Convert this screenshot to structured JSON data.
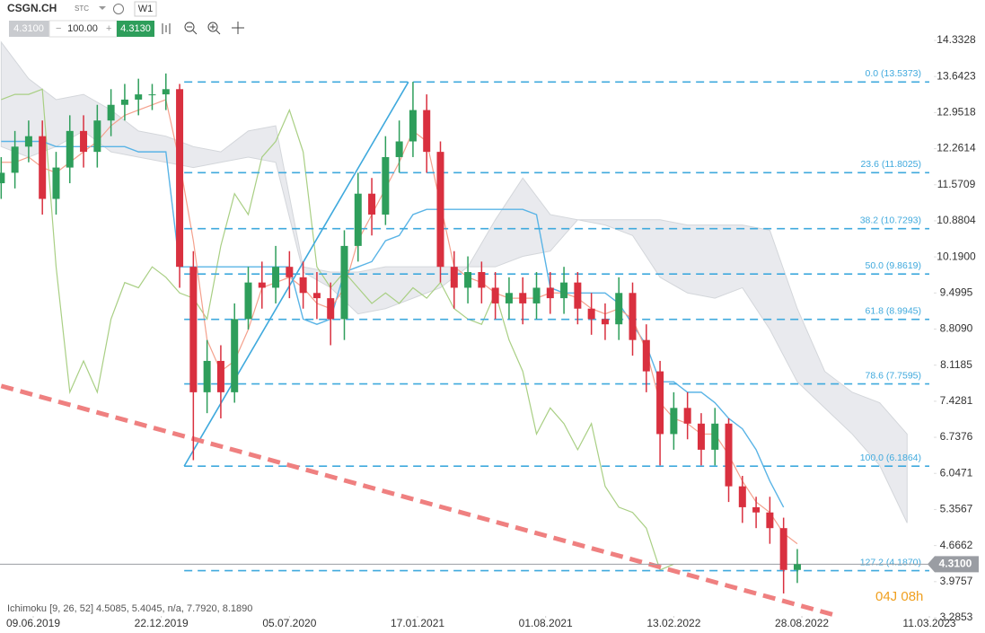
{
  "toolbar": {
    "symbol": "CSGN.CH",
    "exchange": "STC",
    "timeframe": "W1",
    "bid": "4.3100",
    "quantity": "100.00",
    "ask": "4.3130"
  },
  "chart_data": {
    "type": "candlestick",
    "x": [
      "2019-04-21",
      "2019-05-12",
      "2019-06-02",
      "2019-06-23",
      "2019-07-14",
      "2019-08-04",
      "2019-08-25",
      "2019-09-15",
      "2019-10-06",
      "2019-10-27",
      "2019-11-17",
      "2019-12-08",
      "2019-12-29",
      "2020-01-19",
      "2020-02-09",
      "2020-03-01",
      "2020-03-22",
      "2020-04-12",
      "2020-05-03",
      "2020-05-24",
      "2020-06-14",
      "2020-07-05",
      "2020-07-26",
      "2020-08-16",
      "2020-09-06",
      "2020-09-27",
      "2020-10-18",
      "2020-11-08",
      "2020-11-29",
      "2020-12-20",
      "2021-01-10",
      "2021-01-31",
      "2021-02-21",
      "2021-03-14",
      "2021-04-04",
      "2021-04-25",
      "2021-05-16",
      "2021-06-06",
      "2021-06-27",
      "2021-07-18",
      "2021-08-08",
      "2021-08-29",
      "2021-09-19",
      "2021-10-10",
      "2021-10-31",
      "2021-11-21",
      "2021-12-12",
      "2022-01-02",
      "2022-01-23",
      "2022-02-13",
      "2022-03-06",
      "2022-03-27",
      "2022-04-17",
      "2022-05-08",
      "2022-05-29",
      "2022-06-19",
      "2022-07-10",
      "2022-07-31",
      "2022-08-21"
    ],
    "open": [
      11.6,
      11.8,
      12.3,
      12.5,
      11.3,
      11.9,
      12.6,
      12.2,
      12.8,
      13.1,
      13.2,
      13.3,
      13.3,
      13.4,
      10.0,
      7.6,
      8.2,
      7.6,
      9.0,
      9.7,
      9.6,
      10.0,
      9.8,
      9.5,
      9.4,
      9.0,
      10.4,
      11.4,
      11.0,
      12.1,
      12.4,
      13.0,
      12.2,
      10.0,
      9.6,
      9.9,
      9.6,
      9.3,
      9.5,
      9.3,
      9.6,
      9.4,
      9.7,
      9.2,
      9.0,
      8.9,
      9.5,
      8.6,
      8.0,
      6.8,
      7.3,
      7.0,
      6.5,
      7.0,
      5.8,
      5.4,
      5.3,
      5.0,
      4.2
    ],
    "high": [
      12.1,
      12.6,
      12.8,
      12.8,
      12.2,
      12.9,
      12.9,
      13.1,
      13.4,
      13.5,
      13.6,
      13.5,
      13.7,
      13.5,
      10.3,
      8.6,
      8.5,
      9.3,
      10.0,
      10.1,
      10.4,
      10.3,
      10.1,
      9.9,
      9.7,
      10.7,
      11.8,
      11.7,
      12.5,
      12.8,
      13.54,
      13.3,
      12.4,
      10.3,
      10.2,
      10.1,
      9.9,
      9.8,
      9.8,
      9.9,
      9.9,
      10.0,
      9.9,
      9.5,
      9.3,
      9.8,
      9.7,
      8.9,
      8.2,
      7.6,
      7.6,
      7.2,
      7.3,
      7.1,
      6.0,
      5.6,
      5.6,
      5.2,
      4.6
    ],
    "low": [
      11.3,
      11.5,
      12.0,
      11.0,
      11.0,
      11.6,
      11.9,
      11.9,
      12.5,
      12.8,
      12.9,
      13.0,
      13.0,
      9.6,
      6.3,
      7.2,
      7.1,
      7.4,
      8.8,
      9.2,
      9.3,
      9.4,
      9.2,
      9.0,
      8.5,
      8.6,
      10.1,
      10.6,
      10.8,
      11.8,
      12.1,
      11.8,
      9.7,
      9.2,
      9.3,
      9.3,
      9.0,
      9.0,
      8.9,
      9.0,
      9.1,
      9.1,
      8.9,
      8.7,
      8.6,
      8.6,
      8.3,
      7.6,
      6.2,
      6.5,
      6.7,
      6.2,
      6.2,
      5.5,
      5.1,
      5.0,
      4.7,
      3.75,
      3.95
    ],
    "close": [
      11.8,
      12.3,
      12.5,
      11.3,
      11.9,
      12.6,
      12.2,
      12.8,
      13.1,
      13.2,
      13.3,
      13.3,
      13.4,
      10.0,
      7.6,
      8.2,
      7.6,
      9.0,
      9.7,
      9.6,
      10.0,
      9.8,
      9.5,
      9.4,
      9.0,
      10.4,
      11.4,
      11.0,
      12.1,
      12.4,
      13.0,
      12.2,
      10.0,
      9.6,
      9.9,
      9.6,
      9.3,
      9.5,
      9.3,
      9.6,
      9.4,
      9.7,
      9.2,
      9.0,
      8.9,
      9.5,
      8.6,
      8.0,
      6.8,
      7.3,
      7.0,
      6.5,
      7.0,
      5.8,
      5.4,
      5.3,
      5.0,
      4.2,
      4.31
    ],
    "up_color": "#2e9e5b",
    "down_color": "#d9303f",
    "tenkan": {
      "color": "#f4a08c",
      "values": [
        12.0,
        12.0,
        12.1,
        11.9,
        11.8,
        12.0,
        12.2,
        12.4,
        12.7,
        12.9,
        13.0,
        13.1,
        13.2,
        12.0,
        10.5,
        8.6,
        8.0,
        8.2,
        8.8,
        9.6,
        9.7,
        9.8,
        9.6,
        9.3,
        9.2,
        9.6,
        10.5,
        11.0,
        11.5,
        12.0,
        12.6,
        12.4,
        11.2,
        10.0,
        9.8,
        9.7,
        9.5,
        9.4,
        9.4,
        9.4,
        9.5,
        9.5,
        9.4,
        9.2,
        9.1,
        9.2,
        9.0,
        8.4,
        7.4,
        7.1,
        7.0,
        6.8,
        6.8,
        6.4,
        5.9,
        5.5,
        5.3,
        4.9,
        4.7
      ]
    },
    "kijun": {
      "color": "#5ab4e6",
      "values": [
        12.4,
        12.4,
        12.4,
        12.4,
        12.3,
        12.3,
        12.3,
        12.3,
        12.3,
        12.3,
        12.2,
        12.2,
        12.2,
        10.0,
        10.0,
        10.0,
        10.0,
        10.0,
        10.0,
        10.0,
        10.0,
        10.0,
        9.0,
        8.9,
        9.0,
        9.9,
        10.0,
        10.1,
        10.5,
        10.6,
        11.0,
        11.1,
        11.1,
        11.1,
        11.1,
        11.1,
        11.1,
        11.1,
        11.1,
        11.0,
        9.6,
        9.5,
        9.5,
        9.5,
        9.5,
        9.3,
        8.9,
        8.5,
        7.8,
        7.8,
        7.6,
        7.6,
        7.4,
        7.1,
        6.9,
        6.5,
        5.9,
        5.4,
        null
      ]
    },
    "chikou": {
      "color": "#a9cf84",
      "values": [
        13.2,
        13.3,
        13.3,
        13.4,
        10.0,
        7.6,
        8.2,
        7.6,
        9.0,
        9.7,
        9.6,
        10.0,
        9.8,
        9.5,
        9.4,
        9.0,
        10.4,
        11.4,
        11.0,
        12.1,
        12.4,
        13.0,
        12.2,
        10.0,
        9.6,
        9.9,
        9.6,
        9.3,
        9.5,
        9.3,
        9.6,
        9.4,
        9.7,
        9.2,
        9.0,
        8.9,
        9.5,
        8.6,
        8.0,
        6.8,
        7.3,
        7.0,
        6.5,
        7.0,
        5.8,
        5.4,
        5.3,
        5.0,
        4.2,
        4.31,
        null,
        null,
        null,
        null,
        null,
        null,
        null,
        null,
        null
      ]
    },
    "cloud": {
      "color": "#e4e6eb",
      "edge": "#c9ccd2",
      "x": [
        "2019-04-21",
        "2019-06-02",
        "2019-07-14",
        "2019-08-25",
        "2019-10-06",
        "2019-11-17",
        "2019-12-29",
        "2020-02-09",
        "2020-03-22",
        "2020-05-03",
        "2020-06-14",
        "2020-07-26",
        "2020-09-06",
        "2020-10-18",
        "2020-11-29",
        "2021-01-10",
        "2021-02-21",
        "2021-04-04",
        "2021-05-16",
        "2021-06-27",
        "2021-08-08",
        "2021-09-19",
        "2021-10-31",
        "2021-12-12",
        "2022-01-23",
        "2022-03-06",
        "2022-04-17",
        "2022-05-29",
        "2022-07-10",
        "2022-08-21",
        "2022-10-02",
        "2022-11-13",
        "2022-12-25",
        "2023-02-05"
      ],
      "span_a": [
        14.3,
        13.6,
        13.2,
        13.3,
        13.0,
        12.6,
        12.5,
        12.3,
        12.2,
        12.6,
        12.7,
        10.0,
        9.9,
        9.9,
        10.0,
        10.0,
        10.0,
        10.0,
        10.9,
        11.7,
        11.0,
        10.9,
        10.9,
        10.9,
        10.9,
        10.8,
        10.8,
        10.8,
        10.7,
        9.2,
        8.0,
        7.6,
        7.4,
        6.8
      ],
      "span_b": [
        12.3,
        12.1,
        12.3,
        12.6,
        12.2,
        12.1,
        12.0,
        11.9,
        12.0,
        12.1,
        12.0,
        9.9,
        9.6,
        9.1,
        9.2,
        9.4,
        9.6,
        10.0,
        10.0,
        10.2,
        10.3,
        10.9,
        10.8,
        10.6,
        9.8,
        9.5,
        9.4,
        9.6,
        8.8,
        7.8,
        7.3,
        6.8,
        6.2,
        5.1
      ]
    },
    "fibonacci": {
      "color": "#3fa9dd",
      "x": [
        "2020-01-26",
        "2021-01-03"
      ],
      "values": [
        6.1864,
        13.5373
      ],
      "levels": [
        {
          "value": 13.5373,
          "label": "0.0 (13.5373)"
        },
        {
          "value": 11.8025,
          "label": "23.6 (11.8025)"
        },
        {
          "value": 10.7293,
          "label": "38.2 (10.7293)"
        },
        {
          "value": 9.8619,
          "label": "50.0 (9.8619)"
        },
        {
          "value": 8.9945,
          "label": "61.8 (8.9945)"
        },
        {
          "value": 7.7595,
          "label": "78.6 (7.7595)"
        },
        {
          "value": 6.1864,
          "label": "100.0 (6.1864)"
        },
        {
          "value": 4.187,
          "label": "127.2 (4.1870)"
        }
      ]
    },
    "trendline": {
      "color": "#ef8080",
      "x": [
        "2019-04-21",
        "2022-10-16"
      ],
      "values": [
        7.72,
        3.34
      ]
    },
    "last_price": {
      "value": 4.31,
      "label": "4.3100",
      "color": "#9a9da3"
    },
    "ylim": [
      3.2853,
      14.3328
    ],
    "yticks": [
      14.3328,
      13.6423,
      12.9518,
      12.2614,
      11.5709,
      10.8804,
      {
        "value": 10.19,
        "label": "10.1900"
      },
      9.4995,
      {
        "value": 8.809,
        "label": "8.8090"
      },
      8.1185,
      7.4281,
      6.7376,
      6.0471,
      5.3567,
      4.6662,
      3.9757,
      3.2853
    ],
    "xticks": [
      "09.06.2019",
      "22.12.2019",
      "05.07.2020",
      "17.01.2021",
      "01.08.2021",
      "13.02.2022",
      "28.08.2022",
      "11.03.2023"
    ],
    "indicator_label": "Ichimoku [9, 26, 52] 4.5085, 5.4045, n/a, 7.7920, 8.1890",
    "countdown": "04J 08h"
  }
}
